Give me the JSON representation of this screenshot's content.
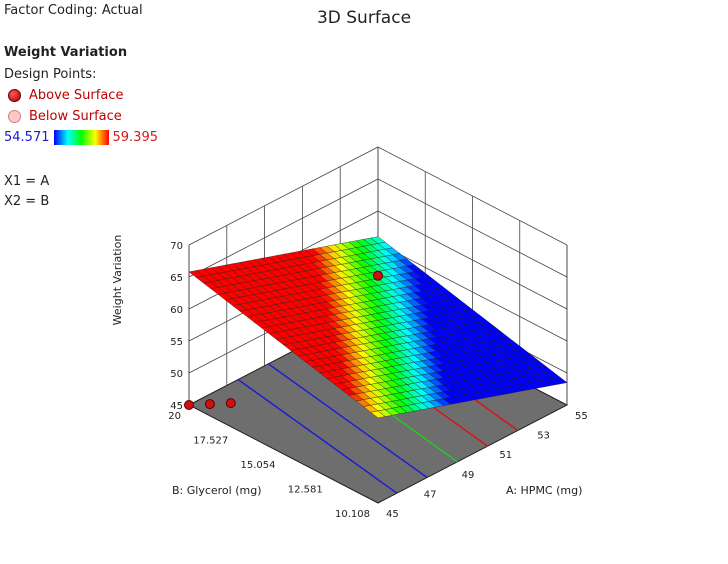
{
  "header": {
    "factor_coding": "Factor Coding: Actual"
  },
  "legend": {
    "response_name": "Weight Variation",
    "design_points_label": "Design Points:",
    "above_label": "Above Surface",
    "below_label": "Below Surface",
    "range_min": "54.571",
    "range_max": "59.395",
    "x1_label": "X1 = A",
    "x2_label": "X2 = B"
  },
  "chart_data": {
    "type": "surface3d",
    "title": "3D Surface",
    "xlabel": "A: HPMC (mg)",
    "ylabel": "B: Glycerol (mg)",
    "zlabel": "Weight Variation",
    "x_ticks": [
      "45",
      "47",
      "49",
      "51",
      "53",
      "55"
    ],
    "y_ticks": [
      "10.108",
      "12.581",
      "15.054",
      "17.527",
      "20"
    ],
    "z_ticks": [
      "45",
      "50",
      "55",
      "60",
      "65",
      "70"
    ],
    "xlim": [
      45,
      55
    ],
    "ylim": [
      10.108,
      20
    ],
    "zlim": [
      45,
      70
    ],
    "surface": {
      "z_at_x45_y10.108": 58.3,
      "z_at_x55_y10.108": 48.5,
      "z_at_x45_y20": 65.8,
      "z_at_x55_y20": 56.0
    },
    "color_range": [
      54.571,
      59.395
    ],
    "contour_lines": [
      {
        "level": "blue",
        "color": "#1a1ad6"
      },
      {
        "level": "blue",
        "color": "#1a1ad6"
      },
      {
        "level": "green",
        "color": "#22cc22"
      },
      {
        "level": "red",
        "color": "#dd1111"
      },
      {
        "level": "red",
        "color": "#dd1111"
      }
    ],
    "design_points": [
      {
        "x": 50,
        "y": 15.054,
        "z": 65.2,
        "position": "above"
      },
      {
        "x": 45,
        "y": 20,
        "z": 45,
        "position": "above"
      },
      {
        "x": 45.6,
        "y": 19.5,
        "z": 45,
        "position": "above"
      },
      {
        "x": 46.2,
        "y": 19.0,
        "z": 45,
        "position": "above"
      }
    ]
  }
}
